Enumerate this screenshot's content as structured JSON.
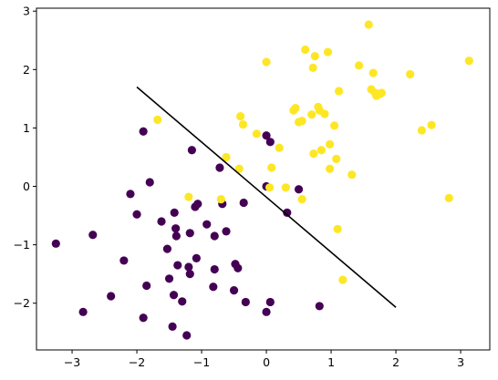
{
  "chart_data": {
    "type": "scatter",
    "title": "",
    "xlabel": "",
    "ylabel": "",
    "xlim": [
      -3.55,
      3.45
    ],
    "ylim": [
      -2.8,
      3.05
    ],
    "xticks": [
      -3,
      -2,
      -1,
      0,
      1,
      2,
      3
    ],
    "yticks": [
      -2,
      -1,
      0,
      1,
      2,
      3
    ],
    "xtick_labels": [
      "−3",
      "−2",
      "−1",
      "0",
      "1",
      "2",
      "3"
    ],
    "ytick_labels": [
      "−2",
      "−1",
      "0",
      "1",
      "2",
      "3"
    ],
    "grid": false,
    "colors": {
      "class0": "#440154",
      "class1": "#fde725",
      "boundary": "#000000"
    },
    "series": [
      {
        "color": "#440154",
        "points": [
          [
            -3.25,
            -0.98
          ],
          [
            -2.83,
            -2.15
          ],
          [
            -2.68,
            -0.83
          ],
          [
            -2.4,
            -1.88
          ],
          [
            -2.2,
            -1.27
          ],
          [
            -2.1,
            -0.13
          ],
          [
            -2.0,
            -0.48
          ],
          [
            -1.9,
            0.94
          ],
          [
            -1.9,
            -2.25
          ],
          [
            -1.85,
            -1.7
          ],
          [
            -1.8,
            0.07
          ],
          [
            -1.62,
            -0.6
          ],
          [
            -1.53,
            -1.07
          ],
          [
            -1.5,
            -1.58
          ],
          [
            -1.45,
            -2.4
          ],
          [
            -1.43,
            -1.86
          ],
          [
            -1.42,
            -0.45
          ],
          [
            -1.4,
            -0.72
          ],
          [
            -1.39,
            -0.85
          ],
          [
            -1.37,
            -1.35
          ],
          [
            -1.3,
            -1.97
          ],
          [
            -1.23,
            -2.55
          ],
          [
            -1.2,
            -1.38
          ],
          [
            -1.18,
            -0.8
          ],
          [
            -1.18,
            -1.5
          ],
          [
            -1.15,
            0.62
          ],
          [
            -1.1,
            -0.35
          ],
          [
            -1.08,
            -1.23
          ],
          [
            -1.06,
            -0.3
          ],
          [
            -0.92,
            -0.65
          ],
          [
            -0.82,
            -1.72
          ],
          [
            -0.8,
            -1.42
          ],
          [
            -0.8,
            -0.85
          ],
          [
            -0.72,
            0.32
          ],
          [
            -0.68,
            -0.3
          ],
          [
            -0.62,
            -0.77
          ],
          [
            -0.5,
            -1.78
          ],
          [
            -0.48,
            -1.33
          ],
          [
            -0.44,
            -1.4
          ],
          [
            -0.35,
            -0.28
          ],
          [
            -0.32,
            -1.98
          ],
          [
            0.0,
            0.87
          ],
          [
            0.0,
            0.0
          ],
          [
            0.0,
            -2.15
          ],
          [
            0.06,
            0.76
          ],
          [
            0.06,
            -1.98
          ],
          [
            0.32,
            -0.45
          ],
          [
            0.5,
            -0.05
          ],
          [
            0.82,
            -2.05
          ]
        ]
      },
      {
        "color": "#fde725",
        "points": [
          [
            -1.68,
            1.14
          ],
          [
            -1.2,
            -0.18
          ],
          [
            -0.7,
            -0.22
          ],
          [
            -0.62,
            0.5
          ],
          [
            -0.42,
            0.3
          ],
          [
            -0.4,
            1.2
          ],
          [
            -0.36,
            1.06
          ],
          [
            -0.15,
            0.9
          ],
          [
            0.0,
            2.13
          ],
          [
            0.05,
            -0.02
          ],
          [
            0.08,
            0.32
          ],
          [
            0.2,
            0.66
          ],
          [
            0.3,
            -0.02
          ],
          [
            0.42,
            1.3
          ],
          [
            0.45,
            1.34
          ],
          [
            0.5,
            1.1
          ],
          [
            0.55,
            -0.22
          ],
          [
            0.55,
            1.12
          ],
          [
            0.6,
            2.34
          ],
          [
            0.7,
            1.23
          ],
          [
            0.73,
            0.56
          ],
          [
            0.72,
            2.03
          ],
          [
            0.75,
            2.23
          ],
          [
            0.8,
            1.36
          ],
          [
            0.82,
            1.3
          ],
          [
            0.85,
            0.62
          ],
          [
            0.9,
            1.24
          ],
          [
            0.95,
            2.3
          ],
          [
            0.98,
            0.72
          ],
          [
            0.98,
            0.3
          ],
          [
            1.05,
            1.04
          ],
          [
            1.08,
            0.47
          ],
          [
            1.1,
            -0.73
          ],
          [
            1.12,
            1.63
          ],
          [
            1.18,
            -1.6
          ],
          [
            1.32,
            0.2
          ],
          [
            1.43,
            2.07
          ],
          [
            1.58,
            2.77
          ],
          [
            1.62,
            1.66
          ],
          [
            1.65,
            1.94
          ],
          [
            1.68,
            1.6
          ],
          [
            1.7,
            1.55
          ],
          [
            1.75,
            1.58
          ],
          [
            1.78,
            1.6
          ],
          [
            2.22,
            1.92
          ],
          [
            2.4,
            0.96
          ],
          [
            2.55,
            1.05
          ],
          [
            2.82,
            -0.2
          ],
          [
            3.13,
            2.15
          ]
        ]
      }
    ],
    "boundary_line": {
      "x": [
        -2.0,
        2.0
      ],
      "y": [
        1.7,
        -2.07
      ]
    }
  }
}
